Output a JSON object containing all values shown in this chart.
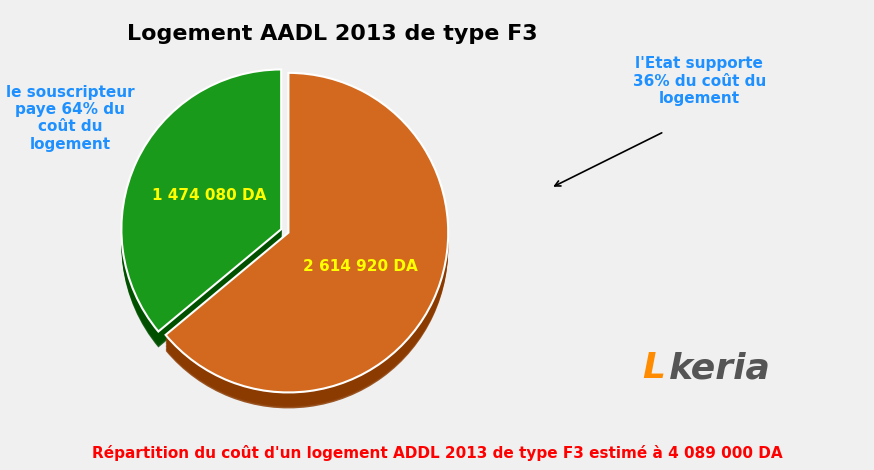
{
  "title": "Logement AADL 2013 de type F3",
  "title_fontsize": 16,
  "title_fontweight": "bold",
  "slices": [
    2614920,
    1474080
  ],
  "slice_colors": [
    "#D2691E",
    "#1A9A1A"
  ],
  "slice_colors_dark": [
    "#8B3A00",
    "#005000"
  ],
  "explode": [
    0.0,
    0.05
  ],
  "labels": [
    "2 614 920 DA",
    "1 474 080 DA"
  ],
  "label_colors": [
    "#FFFF00",
    "#FFFF00"
  ],
  "annotation_left_text": "le souscripteur\npaye 64% du\ncoût du\nlogement",
  "annotation_right_text": "l'Etat supporte\n36% du coût du\nlogement",
  "annotation_color": "#1E90FF",
  "footer_text": "Répartition du coût d'un logement ADDL 2013 de type F3 estimé à 4 089 000 DA",
  "footer_color": "#FF0000",
  "footer_fontsize": 11,
  "background_color": "#F0F0F0",
  "start_angle": 90,
  "logo_color_L": "#FF8C00",
  "logo_color_keria": "#555555"
}
